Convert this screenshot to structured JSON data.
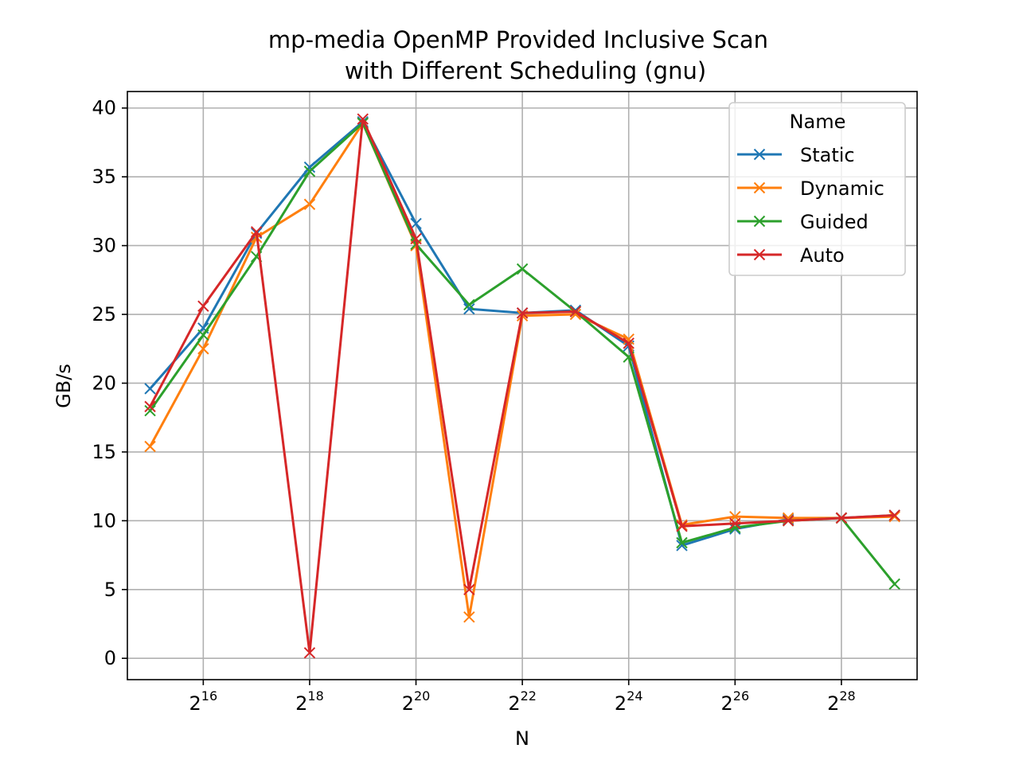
{
  "chart_data": {
    "type": "line",
    "title_lines": [
      "mp-media OpenMP Provided Inclusive Scan",
      "with Different Scheduling (gnu)"
    ],
    "xlabel": "N",
    "ylabel": "GB/s",
    "x_scale": "log2",
    "x": [
      32768,
      65536,
      131072,
      262144,
      524288,
      1048576,
      2097152,
      4194304,
      8388608,
      16777216,
      33554432,
      67108864,
      134217728,
      268435456,
      536870912
    ],
    "xlim": [
      24366,
      720000000
    ],
    "ylim": [
      -1.55,
      41.2
    ],
    "xticks": [
      {
        "exp": 16,
        "value": 65536,
        "base": "2",
        "sup": "16"
      },
      {
        "exp": 18,
        "value": 262144,
        "base": "2",
        "sup": "18"
      },
      {
        "exp": 20,
        "value": 1048576,
        "base": "2",
        "sup": "20"
      },
      {
        "exp": 22,
        "value": 4194304,
        "base": "2",
        "sup": "22"
      },
      {
        "exp": 24,
        "value": 16777216,
        "base": "2",
        "sup": "24"
      },
      {
        "exp": 26,
        "value": 67108864,
        "base": "2",
        "sup": "26"
      },
      {
        "exp": 28,
        "value": 268435456,
        "base": "2",
        "sup": "28"
      }
    ],
    "yticks": [
      {
        "value": 0,
        "label": "0"
      },
      {
        "value": 5,
        "label": "5"
      },
      {
        "value": 10,
        "label": "10"
      },
      {
        "value": 15,
        "label": "15"
      },
      {
        "value": 20,
        "label": "20"
      },
      {
        "value": 25,
        "label": "25"
      },
      {
        "value": 30,
        "label": "30"
      },
      {
        "value": 35,
        "label": "35"
      },
      {
        "value": 40,
        "label": "40"
      }
    ],
    "grid": true,
    "marker": "x",
    "legend": {
      "title": "Name",
      "position": "top-right"
    },
    "series": [
      {
        "name": "Static",
        "color": "#1f77b4",
        "values": [
          19.6,
          24.0,
          30.9,
          35.7,
          39.0,
          31.6,
          25.4,
          25.1,
          25.3,
          22.7,
          8.2,
          9.4,
          10.1,
          10.2,
          10.4
        ]
      },
      {
        "name": "Dynamic",
        "color": "#ff7f0e",
        "values": [
          15.4,
          22.5,
          30.6,
          33.0,
          38.9,
          30.0,
          3.0,
          24.9,
          25.0,
          23.2,
          9.7,
          10.3,
          10.2,
          10.2,
          10.3
        ]
      },
      {
        "name": "Guided",
        "color": "#2ca02c",
        "values": [
          18.0,
          23.5,
          29.2,
          35.4,
          38.9,
          30.1,
          25.7,
          28.3,
          25.2,
          21.9,
          8.4,
          9.5,
          10.0,
          10.2,
          5.4
        ]
      },
      {
        "name": "Auto",
        "color": "#d62728",
        "values": [
          18.3,
          25.6,
          31.0,
          0.4,
          39.2,
          30.5,
          5.0,
          25.1,
          25.2,
          22.9,
          9.6,
          9.8,
          10.0,
          10.2,
          10.4
        ]
      }
    ]
  }
}
